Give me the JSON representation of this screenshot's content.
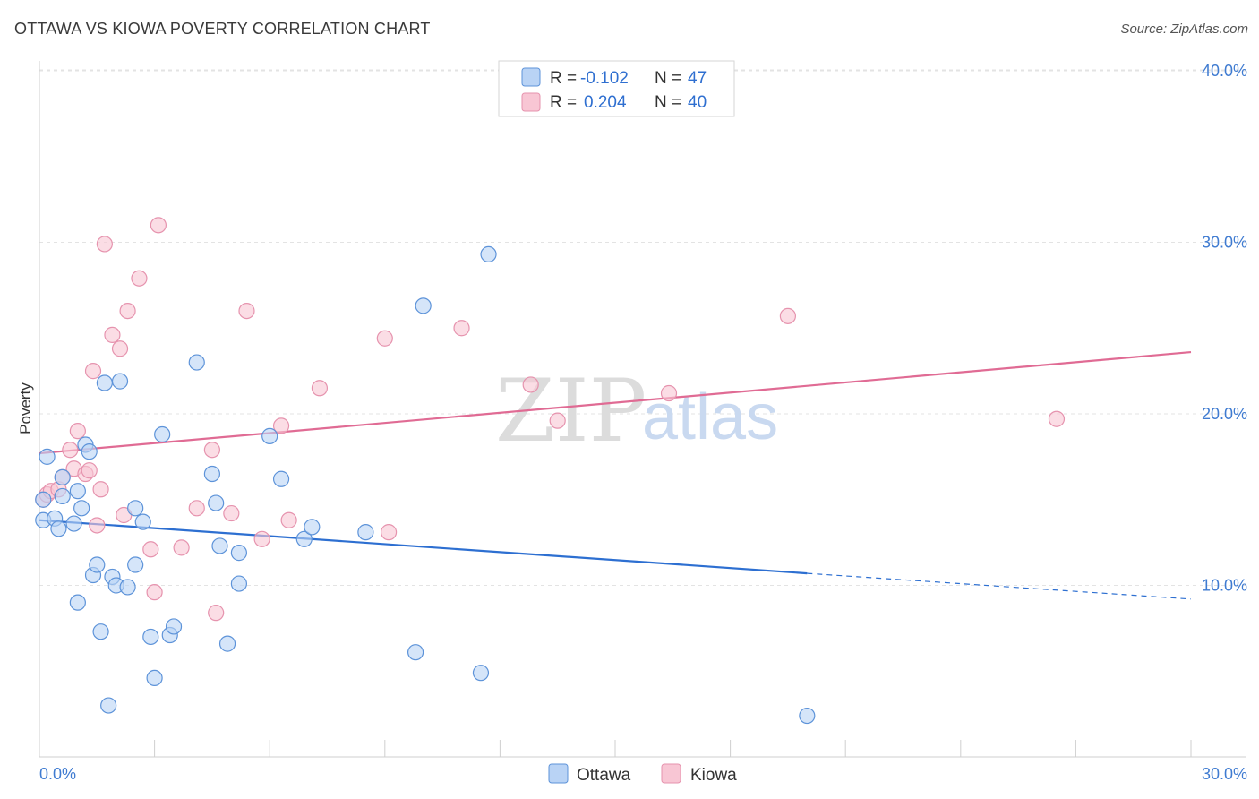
{
  "title": "OTTAWA VS KIOWA POVERTY CORRELATION CHART",
  "source": "Source: ZipAtlas.com",
  "watermark": {
    "zip": "ZIP",
    "atlas": "atlas"
  },
  "colors": {
    "ottawa_fill": "#b9d3f5",
    "ottawa_stroke": "#5d93d9",
    "ottawa_line": "#2d6fd1",
    "kiowa_fill": "#f8c6d4",
    "kiowa_stroke": "#e693ae",
    "kiowa_line": "#e06b94",
    "tick_label": "#3f7bd1",
    "grid": "#e3e3e3"
  },
  "legend": {
    "rows": [
      {
        "r_label": "R =",
        "r_value": "-0.102",
        "n_label": "N =",
        "n_value": "47"
      },
      {
        "r_label": "R =",
        "r_value": "0.204",
        "n_label": "N =",
        "n_value": "40"
      }
    ]
  },
  "chart_data": {
    "type": "scatter",
    "ylabel": "Poverty",
    "xlim": [
      0,
      30
    ],
    "ylim": [
      0,
      40
    ],
    "y_ticks": [
      10,
      20,
      30,
      40
    ],
    "y_tick_labels": [
      "10.0%",
      "20.0%",
      "30.0%",
      "40.0%"
    ],
    "x_tick_labels": [
      "0.0%",
      "30.0%"
    ],
    "grid": "horizontal dashed",
    "series": [
      {
        "name": "Ottawa",
        "points": [
          [
            0.1,
            15.0
          ],
          [
            0.1,
            13.8
          ],
          [
            0.2,
            17.5
          ],
          [
            0.4,
            13.9
          ],
          [
            0.5,
            13.3
          ],
          [
            0.6,
            16.3
          ],
          [
            0.9,
            13.6
          ],
          [
            1.0,
            9.0
          ],
          [
            1.0,
            15.5
          ],
          [
            1.1,
            14.5
          ],
          [
            1.2,
            18.2
          ],
          [
            1.3,
            17.8
          ],
          [
            1.4,
            10.6
          ],
          [
            1.5,
            11.2
          ],
          [
            1.6,
            7.3
          ],
          [
            1.7,
            21.8
          ],
          [
            1.9,
            10.5
          ],
          [
            2.0,
            10.0
          ],
          [
            2.1,
            21.9
          ],
          [
            2.3,
            9.9
          ],
          [
            2.5,
            14.5
          ],
          [
            2.5,
            11.2
          ],
          [
            2.7,
            13.7
          ],
          [
            2.9,
            7.0
          ],
          [
            3.0,
            4.6
          ],
          [
            3.2,
            18.8
          ],
          [
            3.4,
            7.1
          ],
          [
            3.5,
            7.6
          ],
          [
            4.1,
            23.0
          ],
          [
            4.5,
            16.5
          ],
          [
            4.6,
            14.8
          ],
          [
            4.7,
            12.3
          ],
          [
            4.9,
            6.6
          ],
          [
            5.2,
            11.9
          ],
          [
            5.2,
            10.1
          ],
          [
            6.0,
            18.7
          ],
          [
            6.3,
            16.2
          ],
          [
            6.9,
            12.7
          ],
          [
            7.1,
            13.4
          ],
          [
            8.5,
            13.1
          ],
          [
            9.8,
            6.1
          ],
          [
            10.0,
            26.3
          ],
          [
            11.5,
            4.9
          ],
          [
            11.7,
            29.3
          ],
          [
            1.8,
            3.0
          ],
          [
            20.0,
            2.4
          ],
          [
            0.6,
            15.2
          ]
        ],
        "trend": {
          "x": [
            0,
            20
          ],
          "y": [
            13.8,
            10.7
          ],
          "dashed_extension": {
            "x": [
              20,
              30
            ],
            "y": [
              10.7,
              9.2
            ]
          }
        }
      },
      {
        "name": "Kiowa",
        "points": [
          [
            0.1,
            15.0
          ],
          [
            0.2,
            15.3
          ],
          [
            0.3,
            15.5
          ],
          [
            0.5,
            15.6
          ],
          [
            0.6,
            16.3
          ],
          [
            0.8,
            17.9
          ],
          [
            0.9,
            16.8
          ],
          [
            1.0,
            19.0
          ],
          [
            1.2,
            16.5
          ],
          [
            1.3,
            16.7
          ],
          [
            1.4,
            22.5
          ],
          [
            1.5,
            13.5
          ],
          [
            1.6,
            15.6
          ],
          [
            1.7,
            29.9
          ],
          [
            1.9,
            24.6
          ],
          [
            2.1,
            23.8
          ],
          [
            2.2,
            14.1
          ],
          [
            2.3,
            26.0
          ],
          [
            2.6,
            27.9
          ],
          [
            2.9,
            12.1
          ],
          [
            3.0,
            9.6
          ],
          [
            3.1,
            31.0
          ],
          [
            3.7,
            12.2
          ],
          [
            4.1,
            14.5
          ],
          [
            4.5,
            17.9
          ],
          [
            4.6,
            8.4
          ],
          [
            5.0,
            14.2
          ],
          [
            5.4,
            26.0
          ],
          [
            5.8,
            12.7
          ],
          [
            6.3,
            19.3
          ],
          [
            6.5,
            13.8
          ],
          [
            7.3,
            21.5
          ],
          [
            9.0,
            24.4
          ],
          [
            9.1,
            13.1
          ],
          [
            11.0,
            25.0
          ],
          [
            12.8,
            21.7
          ],
          [
            13.5,
            19.6
          ],
          [
            16.4,
            21.2
          ],
          [
            19.5,
            25.7
          ],
          [
            26.5,
            19.7
          ]
        ],
        "trend": {
          "x": [
            0,
            30
          ],
          "y": [
            17.7,
            23.6
          ]
        }
      }
    ]
  },
  "bottom_legend": {
    "items": [
      "Ottawa",
      "Kiowa"
    ]
  }
}
